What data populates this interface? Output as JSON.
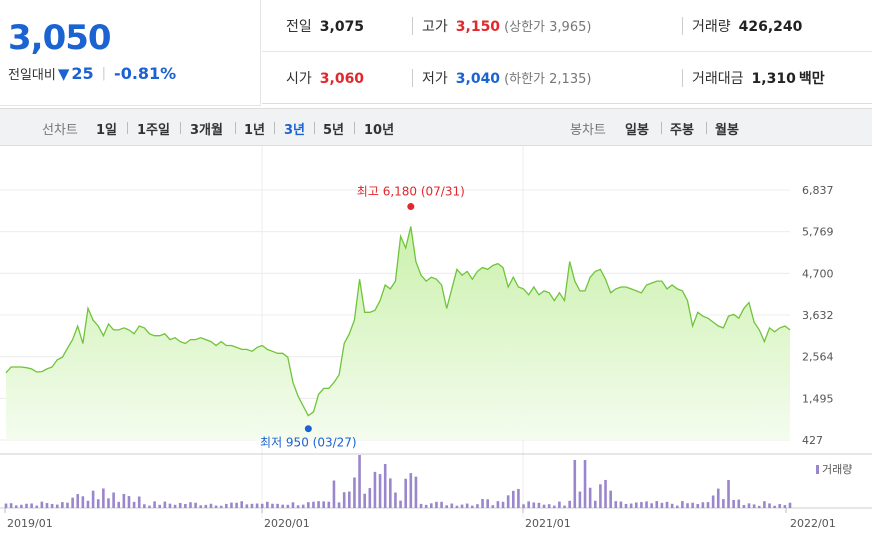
{
  "summary": {
    "price": "3,050",
    "change_label": "전일대비",
    "change_arrow": "▼",
    "change_value": "25",
    "change_pct": "-0.81%"
  },
  "info": {
    "prev_label": "전일",
    "prev_value": "3,075",
    "high_label": "고가",
    "high_value": "3,150",
    "upper_limit": "(상한가 3,965)",
    "volume_label": "거래량",
    "volume_value": "426,240",
    "open_label": "시가",
    "open_value": "3,060",
    "low_label": "저가",
    "low_value": "3,040",
    "lower_limit": "(하한가 2,135)",
    "amount_label": "거래대금",
    "amount_value": "1,310",
    "amount_unit": "백만"
  },
  "toolbar": {
    "line_label": "선차트",
    "periods": [
      "1일",
      "1주일",
      "3개월",
      "1년",
      "3년",
      "5년",
      "10년"
    ],
    "selected_period": "3년",
    "candle_label": "봉차트",
    "candles": [
      "일봉",
      "주봉",
      "월봉"
    ]
  },
  "colors": {
    "up": "#e0282d",
    "down": "#1a63d1",
    "line": "#6fc43a",
    "volume": "#9a86cc"
  },
  "chart_data": {
    "type": "area",
    "x_labels": [
      "2019/01",
      "2020/01",
      "2021/01",
      "2022/01"
    ],
    "y_ticks": [
      "6,837",
      "5,769",
      "4,700",
      "3,632",
      "2,564",
      "1,495",
      "427"
    ],
    "ylim": [
      427,
      6837
    ],
    "max_annotation": "최고 6,180 (07/31)",
    "min_annotation": "최저 950 (03/27)",
    "volume_label": "거래량",
    "price": [
      2150,
      2300,
      2300,
      2300,
      2280,
      2250,
      2170,
      2180,
      2250,
      2300,
      2480,
      2550,
      2780,
      3000,
      3350,
      2900,
      3800,
      3500,
      3350,
      3100,
      3400,
      3250,
      3250,
      3300,
      3250,
      3150,
      3350,
      3300,
      3150,
      3100,
      3100,
      3150,
      3000,
      3050,
      2950,
      2900,
      3000,
      3000,
      3050,
      3000,
      2950,
      2850,
      2950,
      2850,
      2850,
      2800,
      2750,
      2750,
      2700,
      2800,
      2850,
      2750,
      2700,
      2650,
      2650,
      2550,
      1900,
      1550,
      1300,
      1050,
      1150,
      1600,
      1750,
      1750,
      1900,
      2100,
      2900,
      3150,
      3500,
      4550,
      3700,
      3700,
      3750,
      4000,
      4400,
      4300,
      4500,
      5650,
      5350,
      5900,
      5000,
      4650,
      4500,
      4600,
      4550,
      4400,
      3800,
      4300,
      4800,
      4650,
      4750,
      4550,
      4750,
      4850,
      4800,
      4900,
      4950,
      4850,
      4350,
      4600,
      4350,
      4300,
      4150,
      4350,
      4150,
      4250,
      4200,
      4000,
      4200,
      4000,
      5000,
      4500,
      4250,
      4250,
      4600,
      4750,
      4800,
      4550,
      4200,
      4300,
      4350,
      4350,
      4300,
      4250,
      4200,
      4400,
      4450,
      4500,
      4500,
      4300,
      4400,
      4300,
      4250,
      4000,
      3350,
      3700,
      3600,
      3550,
      3450,
      3350,
      3300,
      3600,
      3650,
      3550,
      3800,
      3950,
      3450,
      3250,
      2950,
      3300,
      3200,
      3300,
      3350,
      3250
    ]
  }
}
